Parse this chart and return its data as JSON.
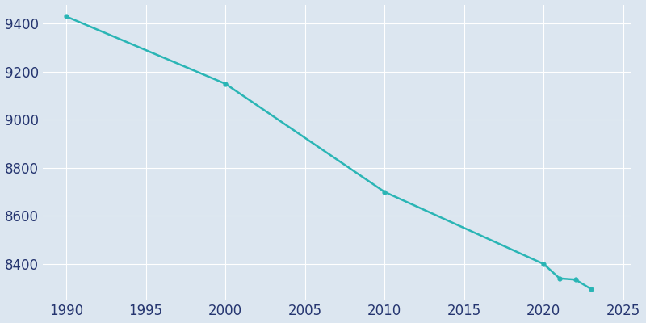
{
  "years": [
    1990,
    2000,
    2010,
    2020,
    2021,
    2022,
    2023
  ],
  "population": [
    9430,
    9150,
    8700,
    8400,
    8340,
    8335,
    8295
  ],
  "line_color": "#2ab5b5",
  "marker": "o",
  "marker_size": 3.5,
  "line_width": 1.8,
  "bg_color": "#dce6f0",
  "grid_color": "#ffffff",
  "xlim": [
    1988.5,
    2025.5
  ],
  "ylim": [
    8250,
    9480
  ],
  "xticks": [
    1990,
    1995,
    2000,
    2005,
    2010,
    2015,
    2020,
    2025
  ],
  "yticks": [
    8400,
    8600,
    8800,
    9000,
    9200,
    9400
  ],
  "tick_label_color": "#253570",
  "tick_fontsize": 12
}
